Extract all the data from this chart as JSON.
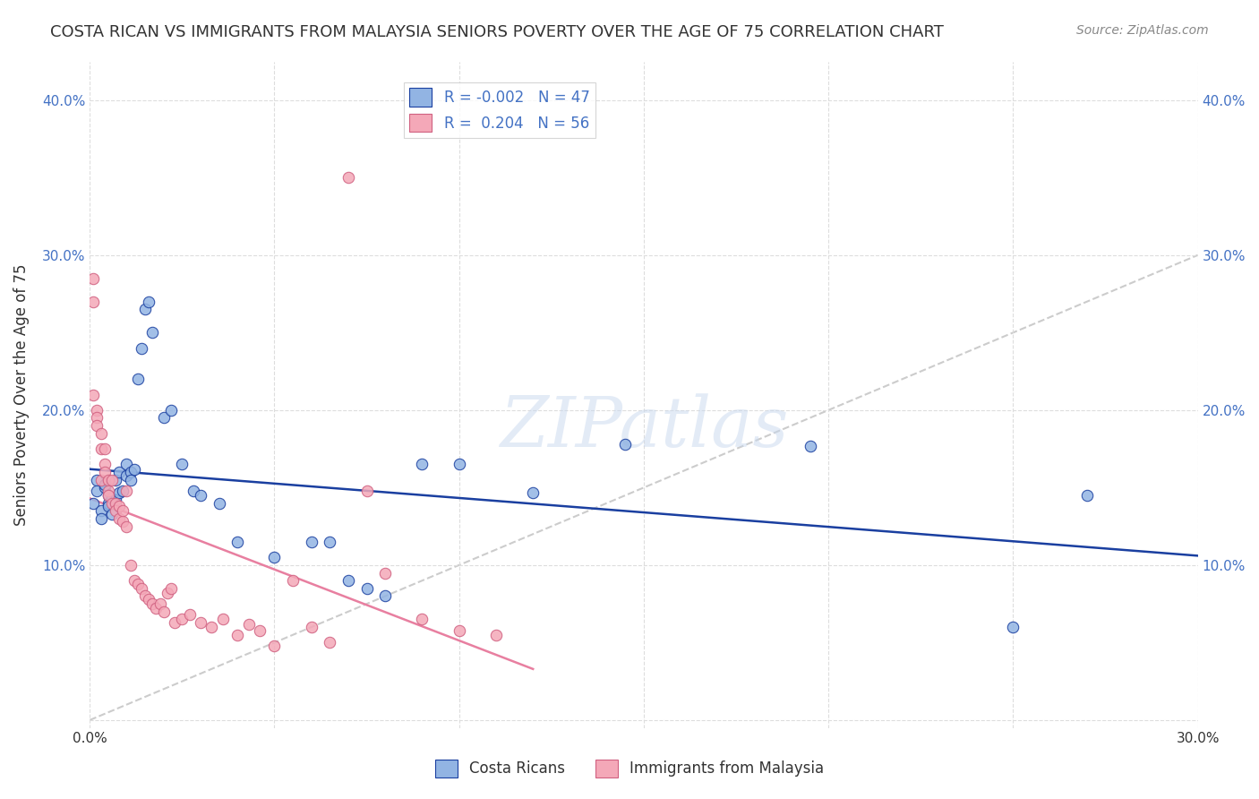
{
  "title": "COSTA RICAN VS IMMIGRANTS FROM MALAYSIA SENIORS POVERTY OVER THE AGE OF 75 CORRELATION CHART",
  "source": "Source: ZipAtlas.com",
  "ylabel": "Seniors Poverty Over the Age of 75",
  "xlim": [
    0.0,
    0.3
  ],
  "ylim": [
    -0.005,
    0.425
  ],
  "xtick_vals": [
    0.0,
    0.05,
    0.1,
    0.15,
    0.2,
    0.25,
    0.3
  ],
  "xtick_labels": [
    "0.0%",
    "",
    "",
    "",
    "",
    "",
    "30.0%"
  ],
  "ytick_vals": [
    0.0,
    0.1,
    0.2,
    0.3,
    0.4
  ],
  "ytick_labels": [
    "",
    "10.0%",
    "20.0%",
    "30.0%",
    "40.0%"
  ],
  "blue_R": "-0.002",
  "blue_N": "47",
  "pink_R": "0.204",
  "pink_N": "56",
  "blue_color": "#92b4e3",
  "pink_color": "#f4a8b8",
  "blue_line_color": "#1a3fa0",
  "pink_line_color": "#e87fa0",
  "pink_edge_color": "#d06080",
  "diag_line_color": "#cccccc",
  "watermark": "ZIPatlas",
  "blue_points_x": [
    0.001,
    0.002,
    0.002,
    0.003,
    0.003,
    0.004,
    0.004,
    0.005,
    0.005,
    0.005,
    0.006,
    0.006,
    0.007,
    0.007,
    0.008,
    0.008,
    0.009,
    0.01,
    0.01,
    0.011,
    0.011,
    0.012,
    0.013,
    0.014,
    0.015,
    0.016,
    0.017,
    0.02,
    0.022,
    0.025,
    0.028,
    0.03,
    0.035,
    0.04,
    0.05,
    0.06,
    0.065,
    0.07,
    0.075,
    0.08,
    0.09,
    0.1,
    0.12,
    0.145,
    0.195,
    0.25,
    0.27
  ],
  "blue_points_y": [
    0.14,
    0.155,
    0.148,
    0.135,
    0.13,
    0.15,
    0.152,
    0.145,
    0.14,
    0.138,
    0.133,
    0.143,
    0.142,
    0.155,
    0.16,
    0.147,
    0.148,
    0.158,
    0.165,
    0.16,
    0.155,
    0.162,
    0.22,
    0.24,
    0.265,
    0.27,
    0.25,
    0.195,
    0.2,
    0.165,
    0.148,
    0.145,
    0.14,
    0.115,
    0.105,
    0.115,
    0.115,
    0.09,
    0.085,
    0.08,
    0.165,
    0.165,
    0.147,
    0.178,
    0.177,
    0.06,
    0.145
  ],
  "pink_points_x": [
    0.001,
    0.001,
    0.001,
    0.002,
    0.002,
    0.002,
    0.003,
    0.003,
    0.003,
    0.004,
    0.004,
    0.004,
    0.005,
    0.005,
    0.005,
    0.006,
    0.006,
    0.007,
    0.007,
    0.008,
    0.008,
    0.009,
    0.009,
    0.01,
    0.01,
    0.011,
    0.012,
    0.013,
    0.014,
    0.015,
    0.016,
    0.017,
    0.018,
    0.019,
    0.02,
    0.021,
    0.022,
    0.023,
    0.025,
    0.027,
    0.03,
    0.033,
    0.036,
    0.04,
    0.043,
    0.046,
    0.05,
    0.055,
    0.06,
    0.065,
    0.07,
    0.075,
    0.08,
    0.09,
    0.1,
    0.11
  ],
  "pink_points_y": [
    0.285,
    0.27,
    0.21,
    0.2,
    0.195,
    0.19,
    0.185,
    0.175,
    0.155,
    0.175,
    0.165,
    0.16,
    0.155,
    0.148,
    0.145,
    0.14,
    0.155,
    0.14,
    0.135,
    0.138,
    0.13,
    0.128,
    0.135,
    0.125,
    0.148,
    0.1,
    0.09,
    0.088,
    0.085,
    0.08,
    0.078,
    0.075,
    0.072,
    0.075,
    0.07,
    0.082,
    0.085,
    0.063,
    0.065,
    0.068,
    0.063,
    0.06,
    0.065,
    0.055,
    0.062,
    0.058,
    0.048,
    0.09,
    0.06,
    0.05,
    0.35,
    0.148,
    0.095,
    0.065,
    0.058,
    0.055
  ]
}
